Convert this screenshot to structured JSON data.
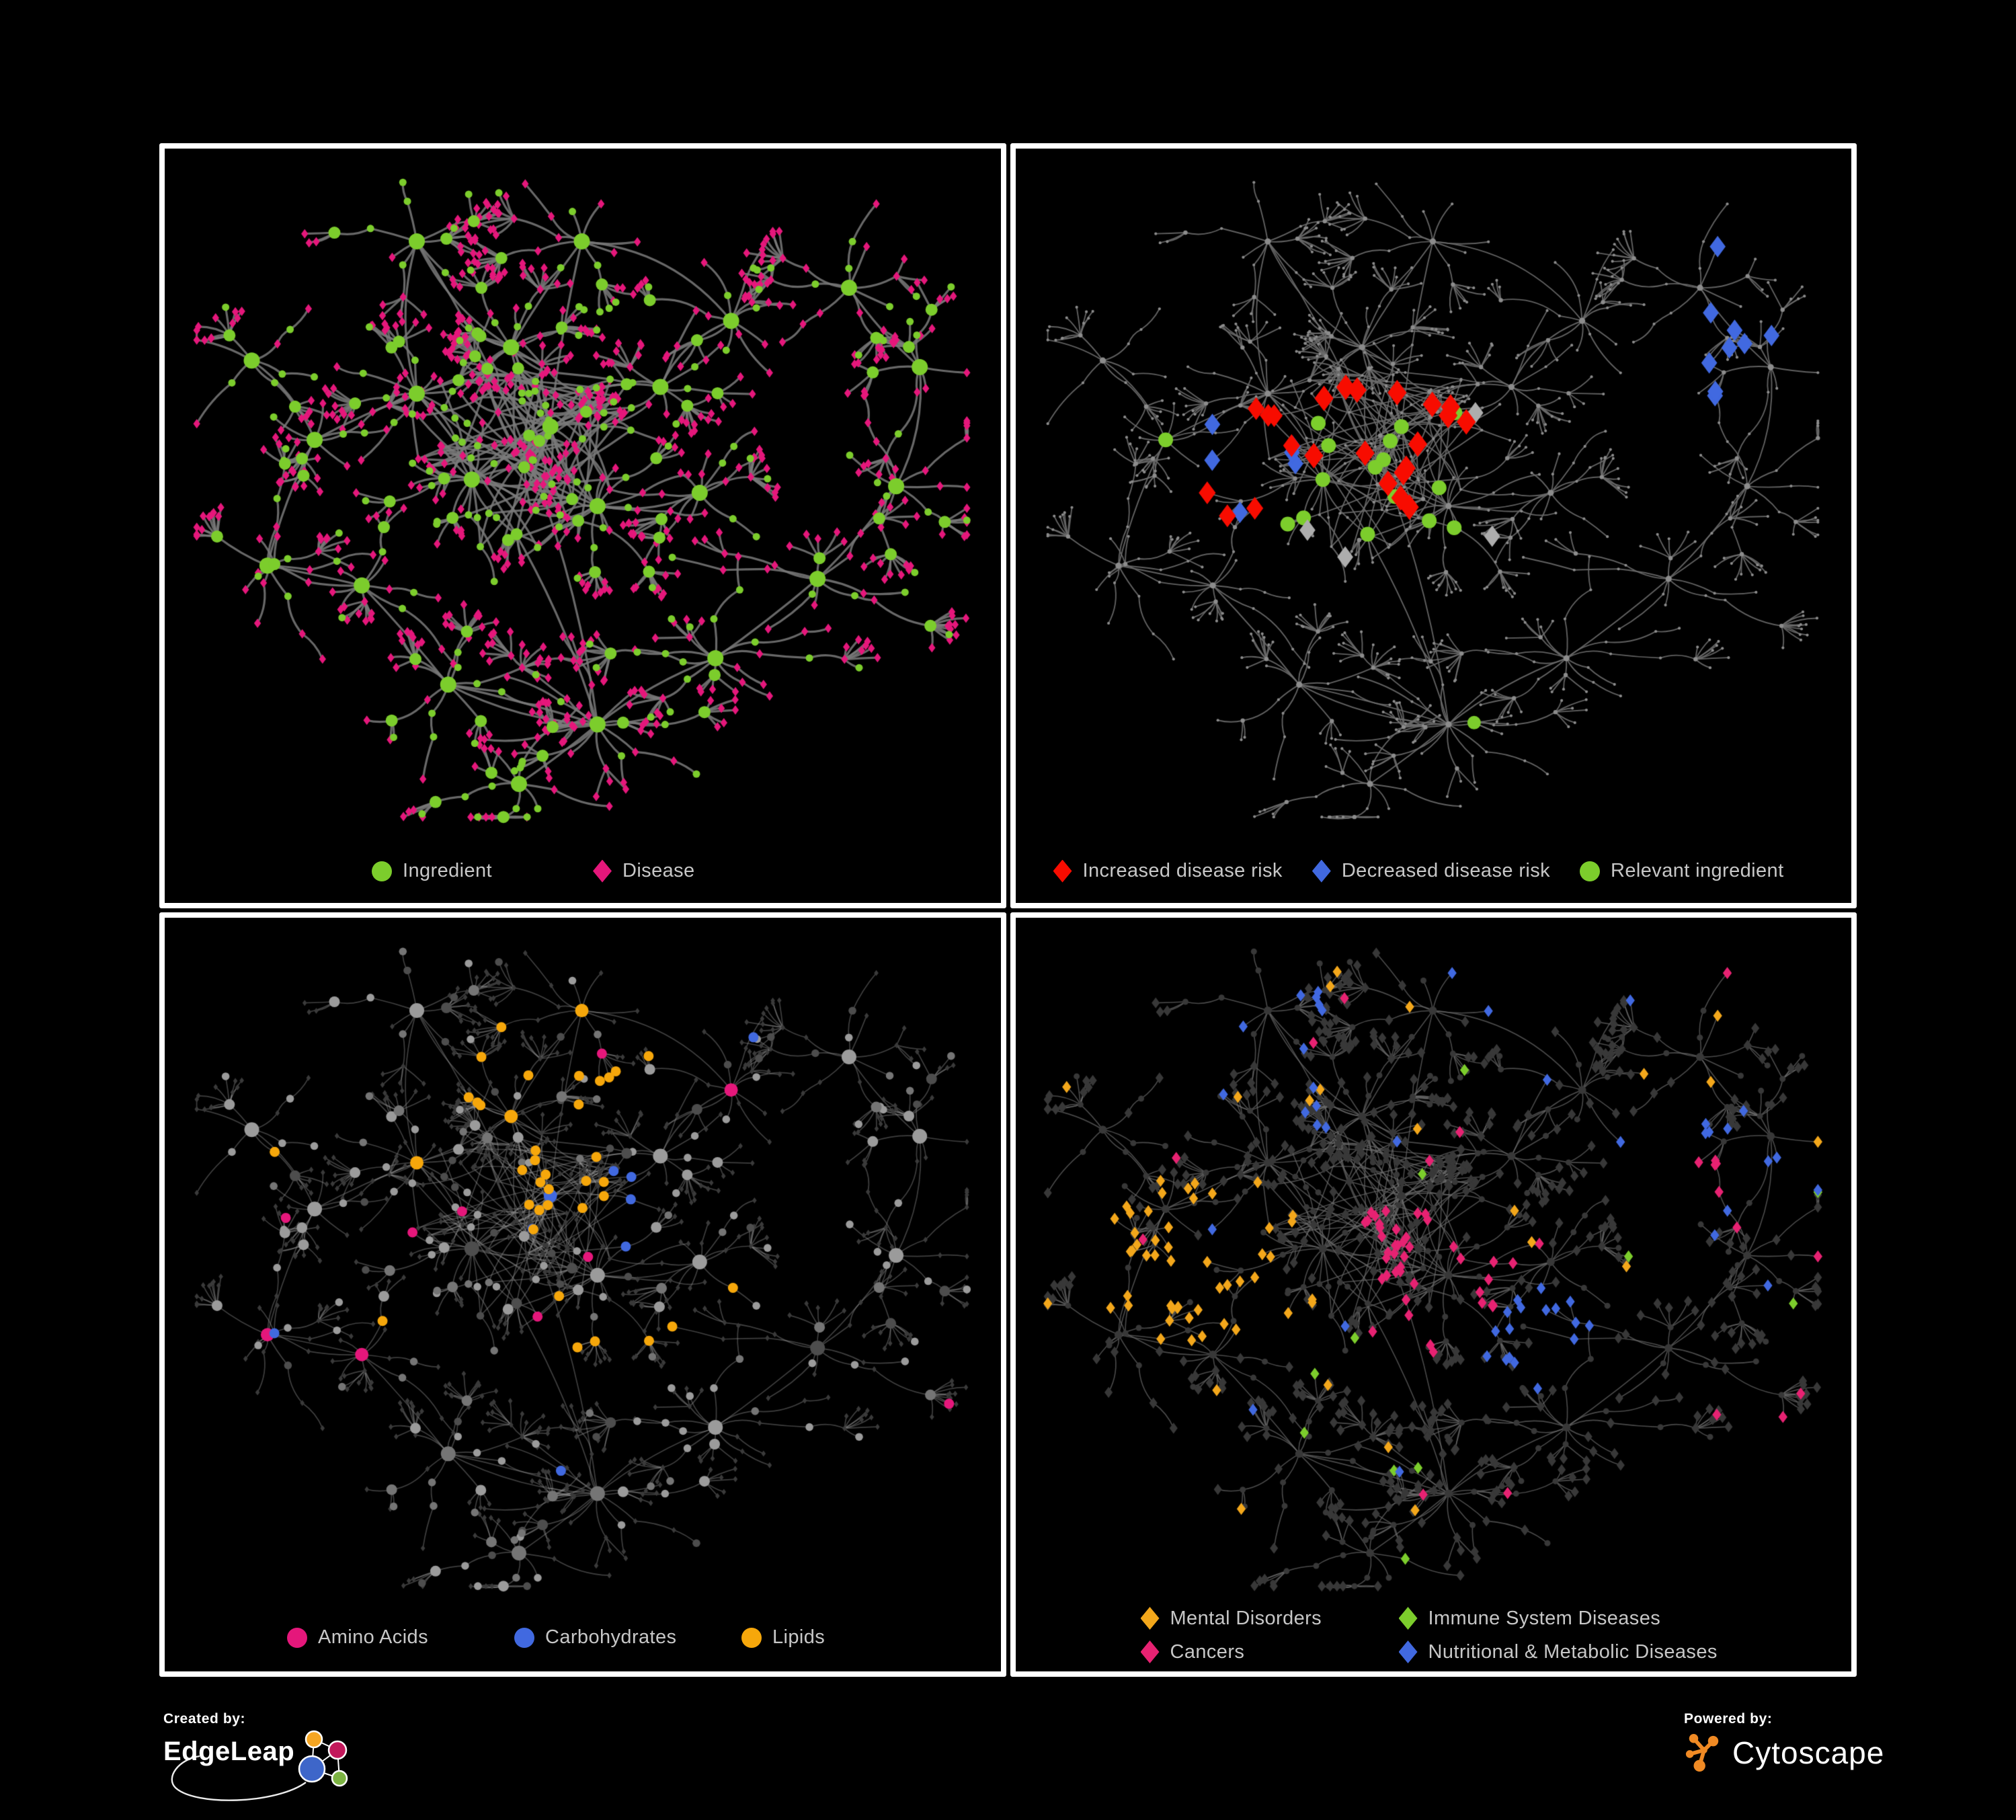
{
  "panels": [
    {
      "id": "p1",
      "name": "ingredient-disease-network",
      "mode": "typed",
      "edge_width": 3.2,
      "edge_alpha": 0.85,
      "colors": {
        "edge": "#7A7A7A",
        "ingredient": "#7CCD2C",
        "disease": "#E5177B"
      },
      "legend": [
        {
          "shape": "circle",
          "color": "#7CCD2C",
          "label": "Ingredient"
        },
        {
          "shape": "diamond",
          "color": "#E5177B",
          "label": "Disease"
        }
      ]
    },
    {
      "id": "p2",
      "name": "disease-risk-network",
      "mode": "highlight",
      "edge_width": 1.9,
      "edge_alpha": 0.9,
      "colors": {
        "edge": "#6B6B6B",
        "base": "#8C8C8C",
        "increased": "#F80C00",
        "decreased": "#4169E0",
        "neutral": "#ADADAD",
        "relevant": "#7CCD2C"
      },
      "legend": [
        {
          "shape": "diamond",
          "color": "#F80C00",
          "label": "Increased disease risk"
        },
        {
          "shape": "diamond",
          "color": "#4169E0",
          "label": "Decreased disease risk"
        },
        {
          "shape": "circle",
          "color": "#7CCD2C",
          "label": "Relevant ingredient"
        }
      ]
    },
    {
      "id": "p3",
      "name": "nutrient-classes-network",
      "mode": "classes",
      "edge_width": 1.7,
      "edge_alpha": 0.42,
      "colors": {
        "edge": "#969696",
        "diamond": "#3A3A3A",
        "circle": "#9B9B9B",
        "circle_dark": "#757575",
        "circle_darker": "#4D4D4D",
        "amino": "#E5177B",
        "carb": "#4169E0",
        "lipid": "#F6A70B"
      },
      "legend": [
        {
          "shape": "circle",
          "color": "#E5177B",
          "label": "Amino Acids"
        },
        {
          "shape": "circle",
          "color": "#4169E0",
          "label": "Carbohydrates"
        },
        {
          "shape": "circle",
          "color": "#F6A70B",
          "label": "Lipids"
        }
      ]
    },
    {
      "id": "p4",
      "name": "disease-categories-network",
      "mode": "categories",
      "edge_width": 1.6,
      "edge_alpha": 0.7,
      "colors": {
        "edge": "#6B6B6B",
        "diamond": "#383838",
        "circle": "#383838",
        "mental": "#F3A71B",
        "immune": "#7CCD2C",
        "cancer": "#E72272",
        "nutritional": "#4169E0"
      },
      "legend": [
        {
          "shape": "diamond",
          "color": "#F3A71B",
          "label": "Mental Disorders"
        },
        {
          "shape": "diamond",
          "color": "#7CCD2C",
          "label": "Immune System Diseases"
        },
        {
          "shape": "diamond",
          "color": "#E72272",
          "label": "Cancers"
        },
        {
          "shape": "diamond",
          "color": "#4169E0",
          "label": "Nutritional & Metabolic Diseases"
        }
      ]
    }
  ],
  "network": {
    "seed": 1337,
    "hubs": [
      [
        0.46,
        0.4,
        18
      ],
      [
        0.36,
        0.48,
        17
      ],
      [
        0.52,
        0.52,
        15
      ],
      [
        0.41,
        0.28,
        14
      ],
      [
        0.29,
        0.35,
        12
      ],
      [
        0.16,
        0.42,
        8
      ],
      [
        0.1,
        0.61,
        7
      ],
      [
        0.22,
        0.64,
        9
      ],
      [
        0.33,
        0.79,
        9
      ],
      [
        0.52,
        0.85,
        13
      ],
      [
        0.42,
        0.94,
        7
      ],
      [
        0.67,
        0.75,
        11
      ],
      [
        0.65,
        0.5,
        10
      ],
      [
        0.8,
        0.63,
        8
      ],
      [
        0.9,
        0.49,
        7
      ],
      [
        0.93,
        0.31,
        6
      ],
      [
        0.29,
        0.12,
        7
      ],
      [
        0.5,
        0.12,
        8
      ],
      [
        0.69,
        0.24,
        9
      ],
      [
        0.84,
        0.19,
        8
      ],
      [
        0.6,
        0.34,
        9
      ],
      [
        0.08,
        0.3,
        6
      ]
    ]
  },
  "footer": {
    "created_by": "Created by:",
    "brand": "EdgeLeap",
    "powered_by": "Powered by:",
    "brand2": "Cytoscape",
    "edgeleap_colors": {
      "orange": "#F5A623",
      "magenta": "#C2185B",
      "blue": "#3E66C9",
      "green": "#7CB342"
    },
    "cytoscape_orange": "#F08A24"
  }
}
